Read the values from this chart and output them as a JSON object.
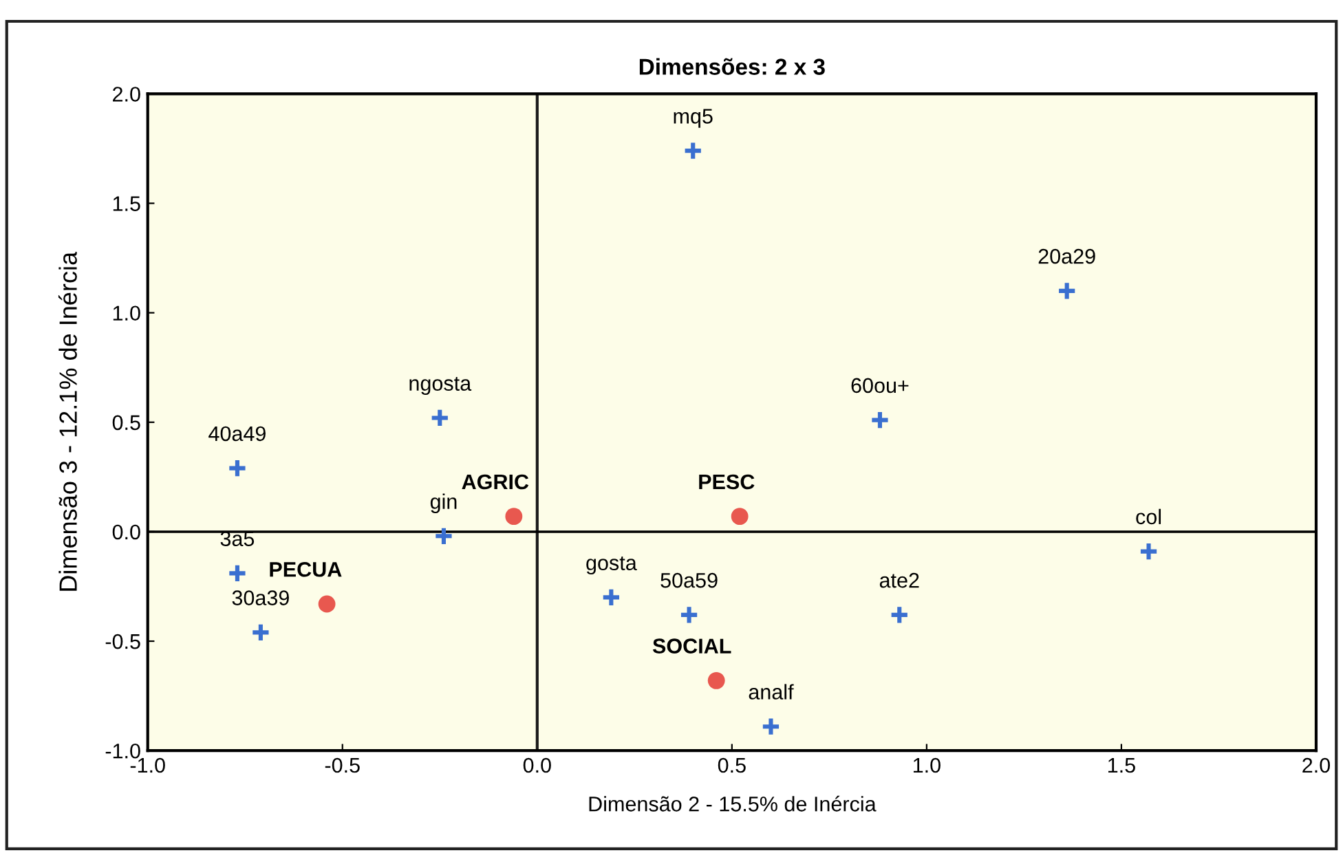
{
  "chart_data": {
    "type": "scatter",
    "title": "Dimensões: 2 x 3",
    "xlabel": "Dimensão 2 - 15.5% de Inércia",
    "ylabel": "Dimensão 3 - 12.1% de Inércia",
    "xlim": [
      -1.0,
      2.0
    ],
    "ylim": [
      -1.0,
      2.0
    ],
    "xticks": [
      {
        "value": -1,
        "label": "-1.0"
      },
      -0.5,
      {
        "value": 0,
        "label": "0.0"
      },
      0.5,
      {
        "value": 1,
        "label": "1.0"
      },
      1.5,
      {
        "value": 2,
        "label": "2.0"
      }
    ],
    "yticks": [
      {
        "value": -1,
        "label": "-1.0"
      },
      -0.5,
      {
        "value": 0,
        "label": "0.0"
      },
      0.5,
      {
        "value": 1,
        "label": "1.0"
      },
      1.5,
      {
        "value": 2,
        "label": "2.0"
      }
    ],
    "grid": false,
    "legend": false,
    "ref_lines": [
      {
        "axis": "x",
        "value": 0,
        "color": "#1a1a1a",
        "line_style": "solid"
      },
      {
        "axis": "y",
        "value": 0,
        "color": "#000000",
        "line_style": "solid"
      }
    ],
    "series": [
      {
        "marker": "cross",
        "color": "#3a6fd0",
        "x": [
          0.4,
          1.36,
          0.88,
          1.57,
          0.93,
          0.39,
          0.19,
          0.6,
          -0.24,
          -0.25,
          -0.77,
          -0.77,
          -0.71
        ],
        "values": [
          1.74,
          1.1,
          0.51,
          -0.09,
          -0.38,
          -0.38,
          -0.3,
          -0.89,
          -0.02,
          0.52,
          0.29,
          -0.19,
          -0.46
        ]
      },
      {
        "marker": "circle",
        "color": "#e8584f",
        "x": [
          0.52,
          -0.06,
          0.46,
          -0.54
        ],
        "values": [
          0.07,
          0.07,
          -0.68,
          -0.33
        ]
      }
    ],
    "annotations": [
      {
        "text": "mq5",
        "x": 0.4,
        "y": 1.74
      },
      {
        "text": "20a29",
        "x": 1.36,
        "y": 1.1
      },
      {
        "text": "60ou+",
        "x": 0.88,
        "y": 0.51
      },
      {
        "text": "col",
        "x": 1.57,
        "y": -0.09
      },
      {
        "text": "ate2",
        "x": 0.93,
        "y": -0.38
      },
      {
        "text": "50a59",
        "x": 0.39,
        "y": -0.38
      },
      {
        "text": "gosta",
        "x": 0.19,
        "y": -0.3
      },
      {
        "text": "analf",
        "x": 0.6,
        "y": -0.89
      },
      {
        "text": "gin",
        "x": -0.24,
        "y": -0.02
      },
      {
        "text": "ngosta",
        "x": -0.25,
        "y": 0.52
      },
      {
        "text": "40a49",
        "x": -0.77,
        "y": 0.29
      },
      {
        "text": "3a5",
        "x": -0.77,
        "y": -0.19
      },
      {
        "text": "30a39",
        "x": -0.71,
        "y": -0.46
      },
      {
        "text": "PESC",
        "x": 0.52,
        "y": 0.07
      },
      {
        "text": "AGRIC",
        "x": -0.06,
        "y": 0.07
      },
      {
        "text": "SOCIAL",
        "x": 0.46,
        "y": -0.68
      },
      {
        "text": "PECUA",
        "x": -0.54,
        "y": -0.33
      }
    ]
  }
}
